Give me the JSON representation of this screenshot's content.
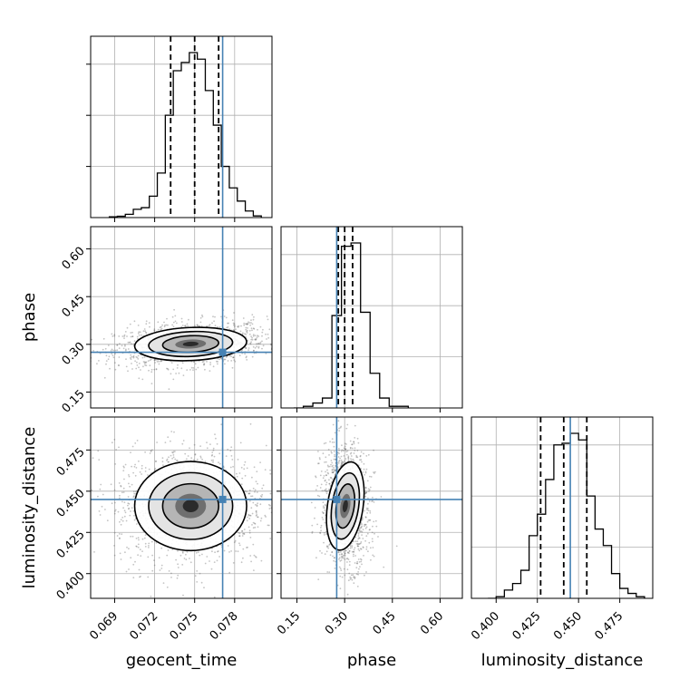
{
  "chart_data": {
    "type": "corner",
    "parameters": [
      "geocent_time",
      "phase",
      "luminosity_distance"
    ],
    "axis_labels": {
      "geocent_time": "geocent_time",
      "phase": "phase",
      "luminosity_distance": "luminosity_distance"
    },
    "ranges": {
      "geocent_time": [
        0.0672,
        0.0808
      ],
      "phase": [
        0.1,
        0.67
      ],
      "luminosity_distance": [
        0.385,
        0.495
      ]
    },
    "ticks": {
      "geocent_time": [
        "0.069",
        "0.072",
        "0.075",
        "0.078"
      ],
      "phase": [
        "0.15",
        "0.30",
        "0.45",
        "0.60"
      ],
      "luminosity_distance": [
        "0.400",
        "0.425",
        "0.450",
        "0.475"
      ]
    },
    "truths": {
      "geocent_time": 0.0771,
      "phase": 0.275,
      "luminosity_distance": 0.445
    },
    "quantiles": {
      "geocent_time": [
        0.0732,
        0.075,
        0.0768
      ],
      "phase": [
        0.28,
        0.3,
        0.325
      ],
      "luminosity_distance": [
        0.427,
        0.441,
        0.455
      ]
    },
    "histograms": {
      "geocent_time": {
        "edges": [
          0.0686,
          0.0692,
          0.0698,
          0.0704,
          0.071,
          0.0716,
          0.0722,
          0.0728,
          0.0734,
          0.074,
          0.0746,
          0.0752,
          0.0758,
          0.0764,
          0.077,
          0.0776,
          0.0782,
          0.0788,
          0.0794,
          0.08
        ],
        "counts": [
          0.005,
          0.008,
          0.02,
          0.05,
          0.06,
          0.13,
          0.27,
          0.62,
          0.89,
          0.94,
          1.0,
          0.96,
          0.77,
          0.56,
          0.31,
          0.18,
          0.1,
          0.04,
          0.01
        ]
      },
      "phase": {
        "edges": [
          0.14,
          0.17,
          0.2,
          0.23,
          0.26,
          0.29,
          0.32,
          0.35,
          0.38,
          0.41,
          0.44,
          0.47,
          0.5
        ],
        "counts": [
          0.0,
          0.01,
          0.03,
          0.06,
          0.56,
          0.98,
          1.0,
          0.58,
          0.21,
          0.06,
          0.01,
          0.01
        ]
      },
      "luminosity_distance": {
        "edges": [
          0.395,
          0.4,
          0.405,
          0.41,
          0.415,
          0.42,
          0.425,
          0.43,
          0.435,
          0.44,
          0.445,
          0.45,
          0.455,
          0.46,
          0.465,
          0.47,
          0.475,
          0.48,
          0.485,
          0.49
        ],
        "counts": [
          0.0,
          0.01,
          0.05,
          0.09,
          0.17,
          0.38,
          0.51,
          0.72,
          0.93,
          0.94,
          1.0,
          0.96,
          0.62,
          0.42,
          0.32,
          0.15,
          0.06,
          0.03,
          0.01
        ]
      }
    },
    "pair_samples": {
      "phase|geocent_time": {
        "center": [
          0.0747,
          0.301
        ],
        "spread": [
          0.0021,
          0.026
        ],
        "corr": 0.25
      },
      "luminosity_distance|geocent_time": {
        "center": [
          0.0747,
          0.441
        ],
        "spread": [
          0.0021,
          0.0135
        ],
        "corr": 0.0
      },
      "luminosity_distance|phase": {
        "center": [
          0.302,
          0.441
        ],
        "spread": [
          0.028,
          0.0135
        ],
        "corr": -0.1
      }
    },
    "colors": {
      "truth": "#4682b4",
      "hist": "#000000",
      "grid": "#b0b0b0",
      "scatter": "#555555"
    },
    "grid": true
  }
}
